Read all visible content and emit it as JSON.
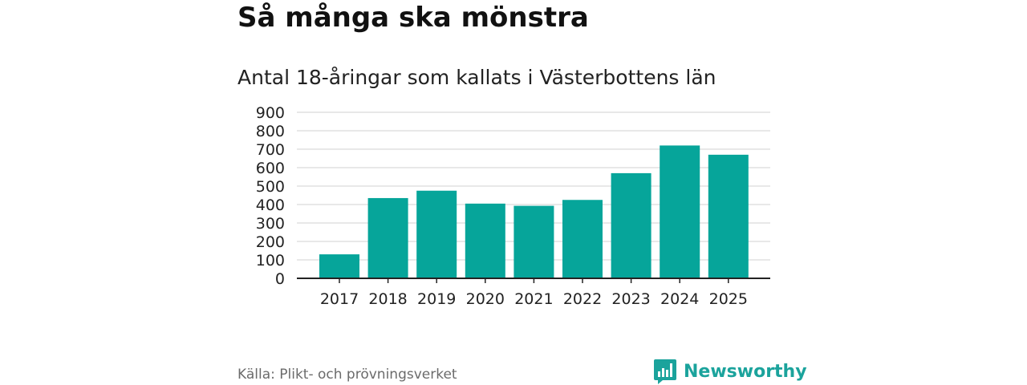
{
  "header": {
    "title": "Så många ska mönstra",
    "subtitle": "Antal 18-åringar som kallats i Västerbottens län"
  },
  "footer": {
    "source": "Källa: Plikt- och prövningsverket",
    "brand": "Newsworthy",
    "brand_icon": "newsworthy-logo-icon"
  },
  "colors": {
    "bar": "#06a59a",
    "grid": "#d9d9d9",
    "axis": "#222222",
    "brand": "#1ba39c"
  },
  "chart_data": {
    "type": "bar",
    "title": "Antal 18-åringar som kallats i Västerbottens län",
    "xlabel": "",
    "ylabel": "",
    "categories": [
      "2017",
      "2018",
      "2019",
      "2020",
      "2021",
      "2022",
      "2023",
      "2024",
      "2025"
    ],
    "values": [
      130,
      435,
      475,
      405,
      393,
      425,
      570,
      720,
      670
    ],
    "ylim": [
      0,
      900
    ],
    "yticks": [
      0,
      100,
      200,
      300,
      400,
      500,
      600,
      700,
      800,
      900
    ],
    "grid": true,
    "legend": "none"
  }
}
